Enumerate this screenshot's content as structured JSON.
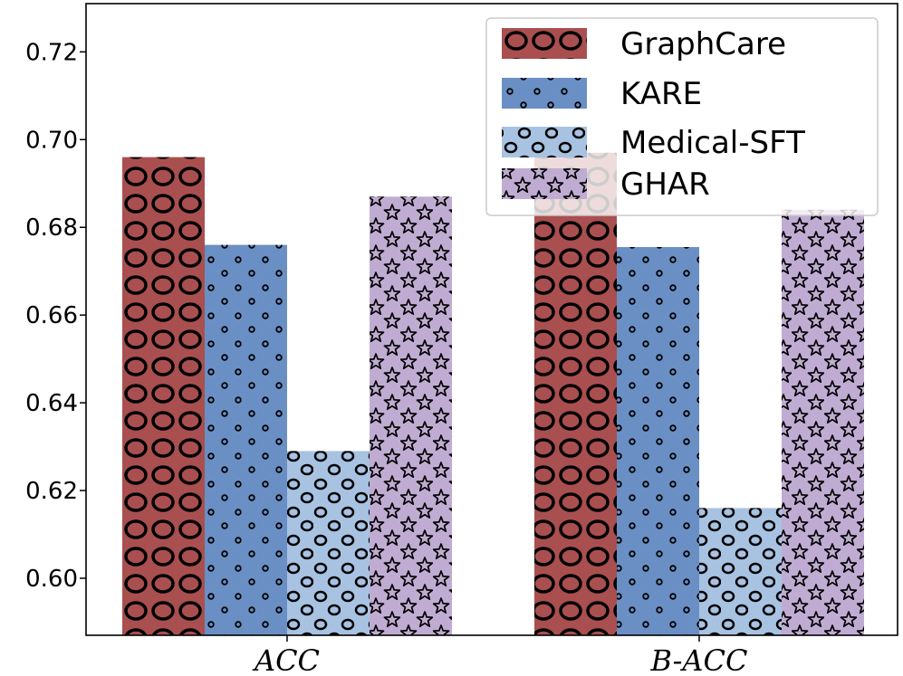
{
  "chart_data": {
    "type": "bar",
    "categories": [
      "ACC",
      "B-ACC"
    ],
    "series": [
      {
        "name": "GraphCare",
        "values": [
          0.696,
          0.697
        ],
        "color": "#a94f4f",
        "hatch": "large-circles"
      },
      {
        "name": "KARE",
        "values": [
          0.676,
          0.6755
        ],
        "color": "#6a8fc4",
        "hatch": "small-dots"
      },
      {
        "name": "Medical-SFT",
        "values": [
          0.629,
          0.616
        ],
        "color": "#a8c2e2",
        "hatch": "medium-circles"
      },
      {
        "name": "GHAR",
        "values": [
          0.687,
          0.684
        ],
        "color": "#c0acd2",
        "hatch": "stars"
      }
    ],
    "yticks": [
      "0.60",
      "0.62",
      "0.64",
      "0.66",
      "0.68",
      "0.70",
      "0.72"
    ],
    "ylim": [
      0.587,
      0.731
    ],
    "xlabel": "",
    "ylabel": "",
    "title": "",
    "legend_position": "top-right",
    "grid": false
  }
}
